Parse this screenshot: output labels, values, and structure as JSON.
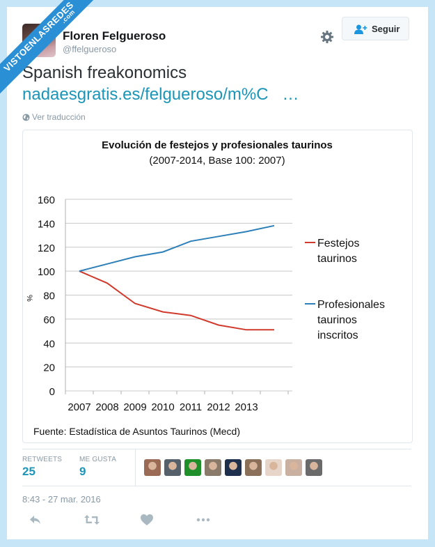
{
  "watermark": {
    "text": "VISTOENLASREDES",
    "suffix": ".com"
  },
  "tweet": {
    "author": {
      "name": "Floren Felgueroso",
      "handle": "@ffelgueroso"
    },
    "follow_label": "Seguir",
    "text": "Spanish freakonomics",
    "link": "nadaesgratis.es/felgueroso/m%C   …",
    "translate_label": "Ver traducción",
    "stats": {
      "retweets_label": "RETWEETS",
      "retweets": "25",
      "likes_label": "ME GUSTA",
      "likes": "9"
    },
    "liker_avatar_colors": [
      "#9a6a55",
      "#55606a",
      "#1f8f2a",
      "#8a7a6a",
      "#1d2f4a",
      "#8a7058",
      "#e6d5c8",
      "#c9b0a0",
      "#6a6a6a"
    ],
    "timestamp": "8:43 - 27 mar. 2016",
    "actions": [
      "reply-icon",
      "retweet-icon",
      "like-icon",
      "more-icon"
    ]
  },
  "colors": {
    "link": "#1b95b8",
    "background": "#c6e5f7",
    "festejos": "#d03a2c",
    "profesionales": "#2d7fb8"
  },
  "chart_data": {
    "type": "line",
    "title": "Evolución de festejos y profesionales taurinos",
    "subtitle": "(2007-2014, Base 100: 2007)",
    "xlabel": "",
    "ylabel": "%",
    "categories": [
      "2007",
      "2008",
      "2009",
      "2010",
      "2011",
      "2012",
      "2013",
      ""
    ],
    "x": [
      2007,
      2008,
      2009,
      2010,
      2011,
      2012,
      2013,
      2014
    ],
    "ylim": [
      0,
      160
    ],
    "yticks": [
      0,
      20,
      40,
      60,
      80,
      100,
      120,
      140,
      160
    ],
    "grid": true,
    "legend_position": "right",
    "series": [
      {
        "name": "Festejos taurinos",
        "color": "#d03a2c",
        "values": [
          100,
          90,
          73,
          66,
          63,
          55,
          51,
          51
        ]
      },
      {
        "name": "Profesionales taurinos inscritos",
        "color": "#2d7fb8",
        "values": [
          100,
          106,
          112,
          116,
          125,
          129,
          133,
          138
        ]
      }
    ],
    "legend": {
      "festejos": [
        "Festejos",
        "taurinos"
      ],
      "profesionales": [
        "Profesionales",
        "taurinos",
        "inscritos"
      ]
    },
    "source": "Fuente: Estadística de Asuntos Taurinos (Mecd)"
  }
}
